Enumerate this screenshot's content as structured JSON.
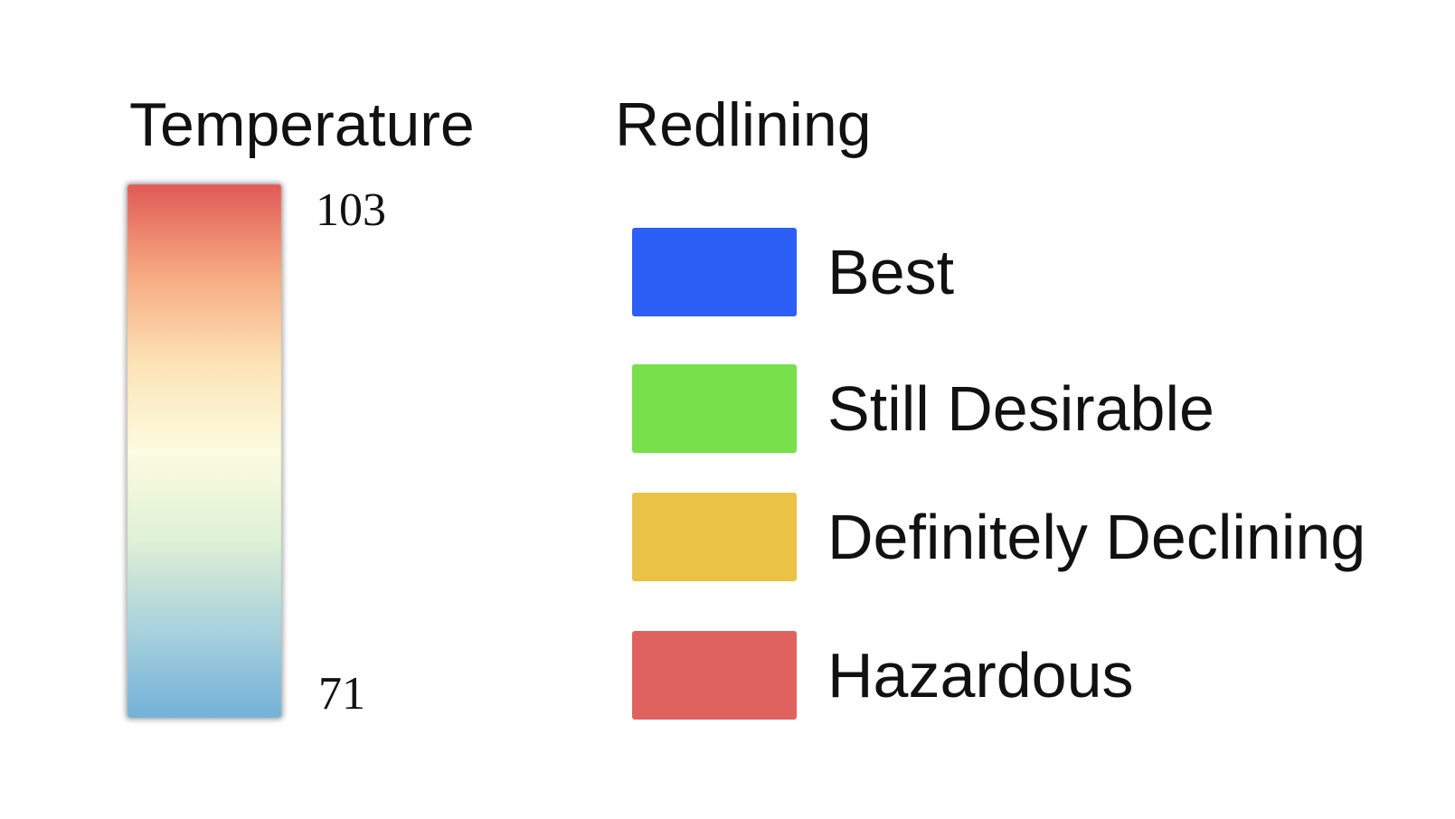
{
  "temperature": {
    "title": "Temperature",
    "max_label": "103",
    "min_label": "71",
    "gradient_stops": [
      "#e15a55",
      "#f7a980",
      "#fde3b5",
      "#fcfce0",
      "#dff1d6",
      "#a9d2dc",
      "#73b1d8"
    ]
  },
  "redlining": {
    "title": "Redlining",
    "items": [
      {
        "label": "Best",
        "color": "#2b5ff5"
      },
      {
        "label": "Still Desirable",
        "color": "#78e04a"
      },
      {
        "label": "Definitely Declining",
        "color": "#e9c246"
      },
      {
        "label": "Hazardous",
        "color": "#e0625e"
      }
    ]
  }
}
